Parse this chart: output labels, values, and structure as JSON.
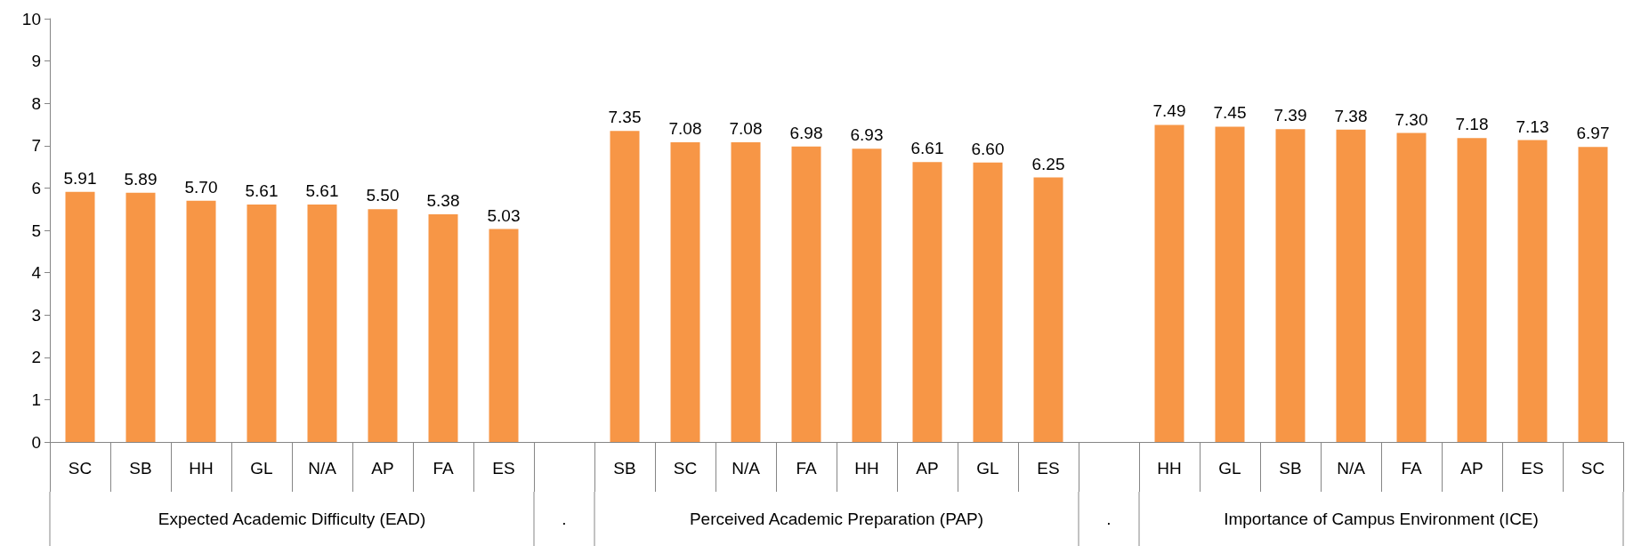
{
  "chart_data": {
    "type": "bar",
    "categories": [
      "SC",
      "SB",
      "HH",
      "GL",
      "N/A",
      "AP",
      "FA",
      "ES",
      null,
      "SB",
      "SC",
      "N/A",
      "FA",
      "HH",
      "AP",
      "GL",
      "ES",
      null,
      "HH",
      "GL",
      "SB",
      "N/A",
      "FA",
      "AP",
      "ES",
      "SC"
    ],
    "values": [
      5.91,
      5.89,
      5.7,
      5.61,
      5.61,
      5.5,
      5.38,
      5.03,
      null,
      7.35,
      7.08,
      7.08,
      6.98,
      6.93,
      6.61,
      6.6,
      6.25,
      null,
      7.49,
      7.45,
      7.39,
      7.38,
      7.3,
      7.18,
      7.13,
      6.97
    ],
    "value_labels": [
      "5.91",
      "5.89",
      "5.70",
      "5.61",
      "5.61",
      "5.50",
      "5.38",
      "5.03",
      null,
      "7.35",
      "7.08",
      "7.08",
      "6.98",
      "6.93",
      "6.61",
      "6.60",
      "6.25",
      null,
      "7.49",
      "7.45",
      "7.39",
      "7.38",
      "7.30",
      "7.18",
      "7.13",
      "6.97"
    ],
    "color": "#f79646",
    "ylim": [
      0,
      10
    ],
    "yticks": [
      0,
      1,
      2,
      3,
      4,
      5,
      6,
      7,
      8,
      9,
      10
    ],
    "annotations": [
      "Expected Academic Difficulty (EAD)",
      ".",
      "Perceived Academic Preparation (PAP)",
      ".",
      "Importance of Campus Environment (ICE)"
    ]
  }
}
